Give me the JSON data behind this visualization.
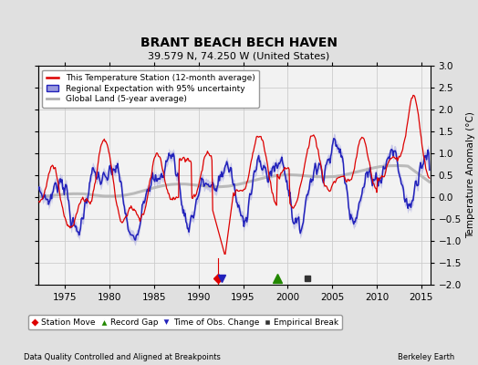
{
  "title": "BRANT BEACH BECH HAVEN",
  "subtitle": "39.579 N, 74.250 W (United States)",
  "ylabel": "Temperature Anomaly (°C)",
  "footer_left": "Data Quality Controlled and Aligned at Breakpoints",
  "footer_right": "Berkeley Earth",
  "xlim": [
    1972,
    2016
  ],
  "ylim": [
    -2.0,
    3.0
  ],
  "yticks": [
    -2,
    -1.5,
    -1,
    -0.5,
    0,
    0.5,
    1,
    1.5,
    2,
    2.5,
    3
  ],
  "xticks": [
    1975,
    1980,
    1985,
    1990,
    1995,
    2000,
    2005,
    2010,
    2015
  ],
  "bg_color": "#e0e0e0",
  "plot_bg_color": "#f2f2f2",
  "station_color": "#dd0000",
  "regional_color": "#2222bb",
  "regional_fill_color": "#9999dd",
  "global_color": "#b0b0b0",
  "markers": {
    "station_move": {
      "year": 1992.2,
      "color": "#dd0000",
      "marker": "D",
      "label": "Station Move"
    },
    "record_gap": {
      "year": 1998.8,
      "color": "#228800",
      "marker": "^",
      "label": "Record Gap"
    },
    "time_of_obs": {
      "year": 1992.6,
      "color": "#2222bb",
      "marker": "v",
      "label": "Time of Obs. Change"
    },
    "empirical_break": {
      "year": 2002.2,
      "color": "#333333",
      "marker": "s",
      "label": "Empirical Break"
    }
  }
}
